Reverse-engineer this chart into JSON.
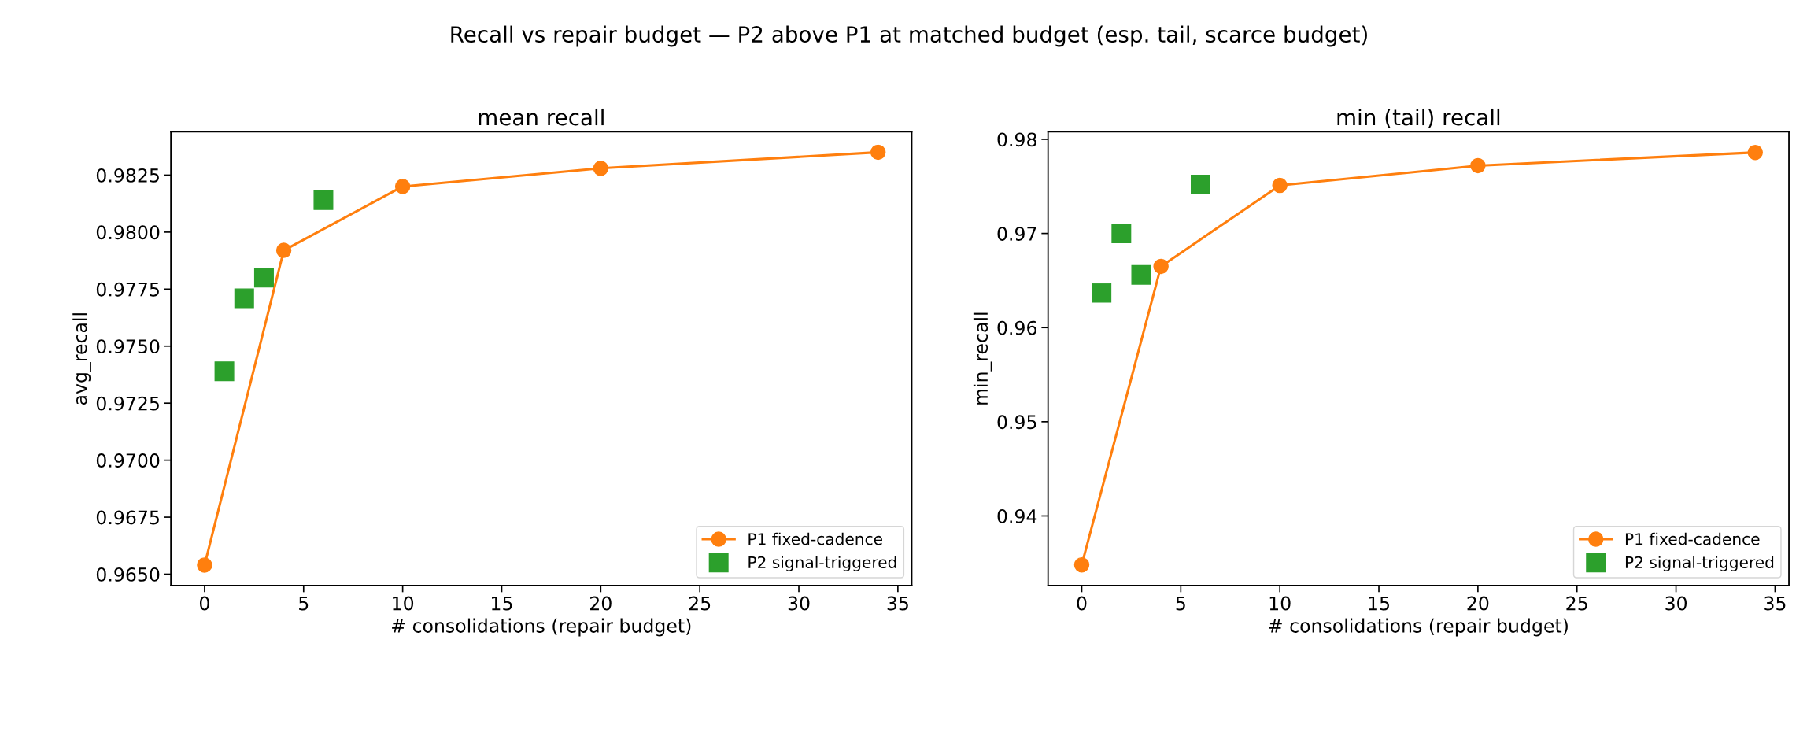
{
  "chart_data": [
    {
      "type": "line",
      "title": "mean recall",
      "annotations": [
        "Recall vs repair budget — P2 above P1 at matched budget (esp. tail, scarce budget)"
      ],
      "xlabel": "# consolidations (repair budget)",
      "ylabel": "avg_recall",
      "xlim": [
        -1.7,
        35.7
      ],
      "xticks": [
        0,
        5,
        10,
        15,
        20,
        25,
        30,
        35
      ],
      "ylim": [
        0.9645,
        0.9844
      ],
      "yticks": [
        {
          "value": 0.965,
          "label": "0.9650"
        },
        {
          "value": 0.9675,
          "label": "0.9675"
        },
        {
          "value": 0.97,
          "label": "0.9700"
        },
        {
          "value": 0.9725,
          "label": "0.9725"
        },
        {
          "value": 0.975,
          "label": "0.9750"
        },
        {
          "value": 0.9775,
          "label": "0.9775"
        },
        {
          "value": 0.98,
          "label": "0.9800"
        },
        {
          "value": 0.9825,
          "label": "0.9825"
        }
      ],
      "legend": "bottom right",
      "grid": false,
      "series": [
        {
          "name": "P1 fixed-cadence",
          "type": "line",
          "color": "#ff7f0e",
          "marker": "circle",
          "line_style": "solid",
          "x": [
            0,
            4,
            10,
            20,
            34
          ],
          "values": [
            0.9654,
            0.9792,
            0.982,
            0.9828,
            0.9835
          ]
        },
        {
          "name": "P2 signal-triggered",
          "type": "scatter",
          "color": "#2ca02c",
          "marker": "square",
          "x": [
            1,
            2,
            3,
            6
          ],
          "values": [
            0.9739,
            0.9771,
            0.978,
            0.9814
          ]
        }
      ]
    },
    {
      "type": "line",
      "title": "min (tail) recall",
      "xlabel": "# consolidations (repair budget)",
      "ylabel": "min_recall",
      "xlim": [
        -1.7,
        35.7
      ],
      "xticks": [
        0,
        5,
        10,
        15,
        20,
        25,
        30,
        35
      ],
      "ylim": [
        0.9326,
        0.9808
      ],
      "yticks": [
        0.94,
        0.95,
        0.96,
        0.97,
        0.98
      ],
      "legend": "bottom right",
      "grid": false,
      "series": [
        {
          "name": "P1 fixed-cadence",
          "type": "line",
          "color": "#ff7f0e",
          "marker": "circle",
          "line_style": "solid",
          "x": [
            0,
            4,
            10,
            20,
            34
          ],
          "values": [
            0.9348,
            0.9665,
            0.9751,
            0.9772,
            0.9786
          ]
        },
        {
          "name": "P2 signal-triggered",
          "type": "scatter",
          "color": "#2ca02c",
          "marker": "square",
          "x": [
            1,
            2,
            3,
            6
          ],
          "values": [
            0.9637,
            0.97,
            0.9656,
            0.9752
          ]
        }
      ]
    }
  ]
}
